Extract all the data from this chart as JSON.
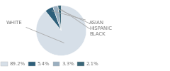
{
  "labels": [
    "WHITE",
    "ASIAN",
    "HISPANIC",
    "BLACK"
  ],
  "values": [
    89.2,
    5.4,
    3.3,
    2.1
  ],
  "colors": [
    "#d6dfe8",
    "#2e5f7a",
    "#9aafc0",
    "#3a6678"
  ],
  "legend_colors": [
    "#d6dfe8",
    "#2e5f7a",
    "#9aafc0",
    "#3a6678"
  ],
  "legend_labels": [
    "89.2%",
    "5.4%",
    "3.3%",
    "2.1%"
  ],
  "startangle": 90,
  "bg_color": "#ffffff",
  "text_color": "#777777"
}
